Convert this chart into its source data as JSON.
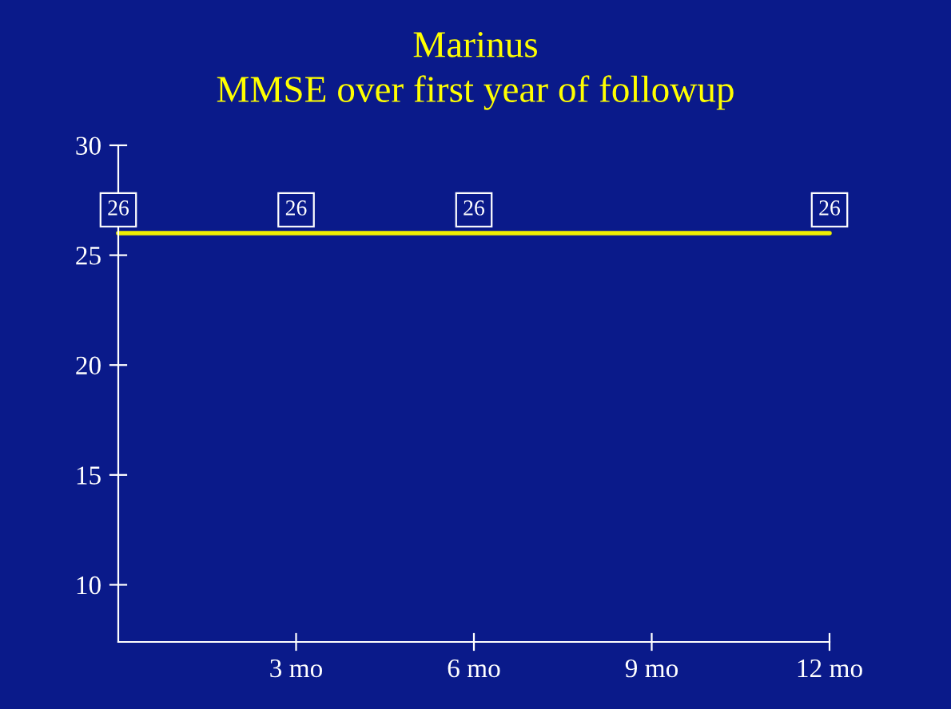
{
  "chart_data": {
    "type": "line",
    "title": "Marinus",
    "subtitle": "MMSE over first year of followup",
    "x": [
      0,
      3,
      6,
      12
    ],
    "series": [
      {
        "color": "#f0f000",
        "values": [
          26,
          26,
          26,
          26
        ]
      }
    ],
    "data_labels": true,
    "marker": "none",
    "line_style": "solid",
    "grid": false,
    "legend": false,
    "xlim": [
      0,
      12
    ],
    "xticks": [
      {
        "value": 3,
        "label": "3 mo"
      },
      {
        "value": 6,
        "label": "6 mo"
      },
      {
        "value": 9,
        "label": "9 mo"
      },
      {
        "value": 12,
        "label": "12 mo"
      }
    ],
    "ylim": [
      7.4,
      30
    ],
    "yticks": [
      10,
      15,
      20,
      25,
      30
    ]
  }
}
